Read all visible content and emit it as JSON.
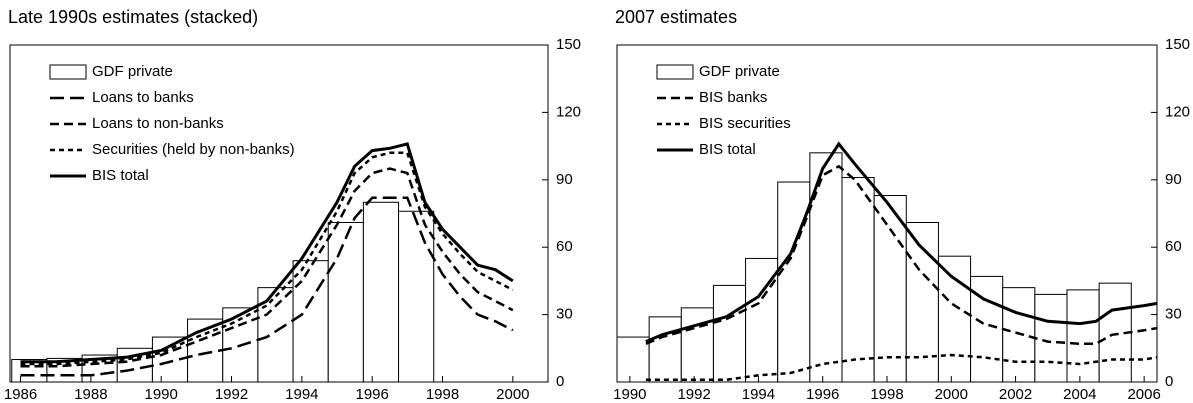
{
  "chart_data": [
    {
      "type": "combo",
      "title": "Late 1990s estimates (stacked)",
      "xlim": [
        1985.7,
        2001
      ],
      "xticks": [
        1986,
        1988,
        1990,
        1992,
        1994,
        1996,
        1998,
        2000
      ],
      "ylim": [
        0,
        150
      ],
      "yticks": [
        0,
        30,
        60,
        90,
        120,
        150
      ],
      "legend": "upper left",
      "bins": [
        1985.75,
        1986.75,
        1987.75,
        1988.75,
        1989.75,
        1990.75,
        1991.75,
        1992.75,
        1993.75,
        1994.75,
        1995.75,
        1996.75,
        1997.75
      ],
      "bar": {
        "name": "GDF private",
        "color": "#ffffff",
        "values": [
          10,
          10.5,
          12,
          15,
          20,
          28,
          33,
          42,
          54,
          71,
          80,
          76
        ]
      },
      "x": [
        1986,
        1987,
        1988,
        1989,
        1990,
        1991,
        1992,
        1993,
        1994,
        1995,
        1995.5,
        1996,
        1996.5,
        1997,
        1997.5,
        1998,
        1998.5,
        1999,
        1999.5,
        2000
      ],
      "series": [
        {
          "name": "Loans to banks",
          "color": "#000000",
          "dash": "long",
          "stack": true,
          "values": [
            3,
            3,
            3,
            5,
            8,
            12,
            15,
            20,
            30,
            55,
            73,
            82,
            82,
            82,
            62,
            48,
            38,
            30,
            27,
            23
          ]
        },
        {
          "name": "Loans to non-banks",
          "color": "#000000",
          "dash": "medium",
          "stack": true,
          "values": [
            4,
            4,
            5,
            4,
            4,
            6,
            9,
            10,
            15,
            15,
            12,
            11,
            13,
            11,
            8,
            10,
            10,
            10,
            9,
            9
          ]
        },
        {
          "name": "Securities (held by non-banks)",
          "color": "#000000",
          "dash": "short",
          "stack": true,
          "values": [
            1,
            1,
            1,
            1,
            1,
            2,
            2,
            4,
            5,
            6,
            8,
            7,
            7,
            9,
            8,
            8,
            9,
            9,
            9,
            9
          ]
        },
        {
          "name": "BIS total",
          "color": "#000000",
          "dash": "solid",
          "stack": false,
          "values": [
            9,
            9,
            10,
            11,
            14,
            22,
            28,
            36,
            55,
            80,
            96,
            103,
            104,
            106,
            80,
            68,
            60,
            52,
            50,
            45
          ]
        }
      ]
    },
    {
      "type": "combo",
      "title": "2007 estimates",
      "xlim": [
        1989.6,
        2006.4
      ],
      "xticks": [
        1990,
        1992,
        1994,
        1996,
        1998,
        2000,
        2002,
        2004,
        2006
      ],
      "ylim": [
        0,
        150
      ],
      "yticks": [
        0,
        30,
        60,
        90,
        120,
        150
      ],
      "legend": "upper left",
      "bins": [
        1989.6,
        1990.6,
        1991.6,
        1992.6,
        1993.6,
        1994.6,
        1995.6,
        1996.6,
        1997.6,
        1998.6,
        1999.6,
        2000.6,
        2001.6,
        2002.6,
        2003.6,
        2004.6,
        2005.6
      ],
      "bar": {
        "name": "GDF private",
        "color": "#ffffff",
        "values": [
          20,
          29,
          33,
          43,
          55,
          89,
          102,
          91,
          83,
          71,
          56,
          47,
          42,
          39,
          41,
          44
        ]
      },
      "x": [
        1990.5,
        1991,
        1992,
        1993,
        1994,
        1995,
        1995.5,
        1996,
        1996.5,
        1997,
        1998,
        1999,
        2000,
        2001,
        2002,
        2003,
        2004,
        2004.5,
        2005,
        2006,
        2006.4
      ],
      "series": [
        {
          "name": "BIS banks",
          "color": "#000000",
          "dash": "medium",
          "stack": false,
          "values": [
            17,
            20,
            24,
            28,
            35,
            55,
            73,
            92,
            96,
            90,
            70,
            50,
            35,
            26,
            22,
            18,
            17,
            17,
            21,
            23,
            24
          ]
        },
        {
          "name": "BIS securities",
          "color": "#000000",
          "dash": "short",
          "stack": false,
          "values": [
            1,
            1,
            1,
            1,
            3,
            4,
            6,
            8,
            9,
            10,
            11,
            11,
            12,
            11,
            9,
            9,
            8,
            9,
            10,
            10,
            11
          ]
        },
        {
          "name": "BIS total",
          "color": "#000000",
          "dash": "solid",
          "stack": false,
          "values": [
            18,
            21,
            25,
            29,
            38,
            57,
            75,
            95,
            106,
            97,
            80,
            61,
            47,
            37,
            31,
            27,
            26,
            27,
            32,
            34,
            35
          ]
        }
      ]
    }
  ]
}
